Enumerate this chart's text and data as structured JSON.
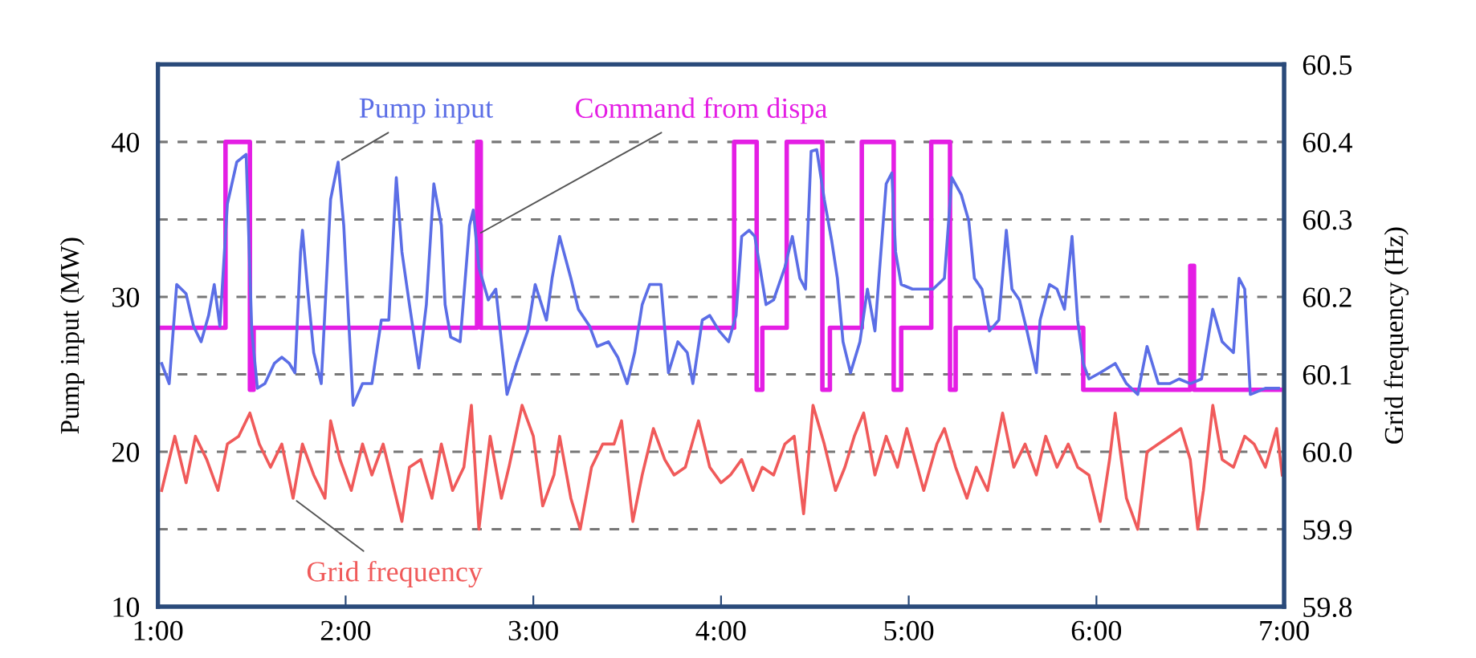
{
  "chart_data": {
    "type": "line",
    "ylabel": "Pump input (MW)",
    "y2label": "Grid frequency (Hz)",
    "xlim": [
      1,
      7
    ],
    "xticks": [
      {
        "value": 1,
        "label": "1:00"
      },
      {
        "value": 2,
        "label": "2:00"
      },
      {
        "value": 3,
        "label": "3:00"
      },
      {
        "value": 4,
        "label": "4:00"
      },
      {
        "value": 5,
        "label": "5:00"
      },
      {
        "value": 6,
        "label": "6:00"
      },
      {
        "value": 7,
        "label": "7:00"
      }
    ],
    "ylim": [
      10,
      45
    ],
    "yticks": [
      10,
      20,
      30,
      40
    ],
    "y2lim": [
      59.8,
      60.5
    ],
    "y2ticks": [
      59.8,
      59.9,
      {
        "value": 60.0,
        "label": "60.0"
      },
      60.1,
      60.2,
      60.3,
      60.4,
      60.5
    ],
    "grid": "y2",
    "line_style": "solid",
    "series": [
      {
        "name": "Pump input",
        "color": "#5b6ee6",
        "x": [
          1.02,
          1.06,
          1.1,
          1.15,
          1.19,
          1.23,
          1.27,
          1.3,
          1.33,
          1.37,
          1.42,
          1.47,
          1.5,
          1.53,
          1.57,
          1.62,
          1.66,
          1.7,
          1.73,
          1.76,
          1.77,
          1.8,
          1.83,
          1.87,
          1.92,
          1.96,
          1.99,
          2.04,
          2.09,
          2.14,
          2.19,
          2.23,
          2.27,
          2.3,
          2.34,
          2.39,
          2.43,
          2.47,
          2.51,
          2.53,
          2.56,
          2.61,
          2.66,
          2.68,
          2.71,
          2.76,
          2.8,
          2.86,
          2.91,
          2.97,
          3.01,
          3.07,
          3.1,
          3.14,
          3.2,
          3.24,
          3.3,
          3.34,
          3.4,
          3.45,
          3.5,
          3.54,
          3.58,
          3.62,
          3.68,
          3.72,
          3.77,
          3.82,
          3.85,
          3.9,
          3.94,
          3.99,
          4.04,
          4.08,
          4.11,
          4.15,
          4.18,
          4.24,
          4.28,
          4.34,
          4.38,
          4.42,
          4.45,
          4.48,
          4.51,
          4.55,
          4.59,
          4.62,
          4.65,
          4.69,
          4.74,
          4.78,
          4.82,
          4.85,
          4.88,
          4.91,
          4.93,
          4.96,
          5.02,
          5.13,
          5.19,
          5.23,
          5.28,
          5.32,
          5.35,
          5.39,
          5.43,
          5.48,
          5.52,
          5.55,
          5.59,
          5.63,
          5.68,
          5.7,
          5.75,
          5.79,
          5.83,
          5.87,
          5.9,
          5.93,
          5.96,
          6.02,
          6.1,
          6.16,
          6.22,
          6.27,
          6.33,
          6.39,
          6.44,
          6.5,
          6.56,
          6.62,
          6.67,
          6.73,
          6.76,
          6.79,
          6.82,
          6.9,
          6.97
        ],
        "values": [
          25.7,
          24.4,
          30.8,
          30.2,
          28.1,
          27.1,
          28.8,
          30.8,
          28.1,
          36.0,
          38.7,
          39.2,
          27.8,
          24.1,
          24.4,
          25.7,
          26.1,
          25.7,
          25.1,
          32.9,
          34.3,
          30.2,
          26.4,
          24.4,
          36.3,
          38.7,
          34.6,
          23.0,
          24.4,
          24.4,
          28.5,
          28.5,
          37.7,
          32.9,
          29.5,
          25.4,
          29.5,
          37.3,
          34.6,
          29.5,
          27.4,
          27.1,
          34.6,
          35.6,
          31.9,
          29.8,
          30.5,
          23.7,
          25.7,
          27.8,
          30.8,
          28.5,
          31.2,
          33.9,
          31.2,
          29.2,
          28.1,
          26.8,
          27.1,
          26.1,
          24.4,
          26.4,
          29.5,
          30.8,
          30.8,
          25.1,
          27.1,
          26.4,
          24.4,
          28.5,
          28.8,
          27.8,
          27.1,
          28.8,
          33.9,
          34.3,
          33.9,
          29.5,
          29.8,
          31.9,
          33.9,
          31.2,
          30.5,
          39.4,
          39.5,
          36.3,
          33.6,
          31.2,
          27.1,
          25.1,
          27.1,
          30.5,
          27.8,
          32.6,
          37.3,
          38.0,
          32.9,
          30.8,
          30.5,
          30.5,
          31.2,
          37.7,
          36.6,
          34.9,
          31.2,
          30.5,
          27.8,
          28.5,
          34.3,
          30.5,
          29.8,
          27.8,
          25.1,
          28.5,
          30.8,
          30.5,
          29.2,
          33.9,
          28.5,
          25.7,
          24.7,
          25.1,
          25.7,
          24.4,
          23.7,
          26.8,
          24.4,
          24.4,
          24.7,
          24.4,
          24.7,
          29.2,
          27.1,
          26.4,
          31.2,
          30.5,
          23.7,
          24.1,
          24.1
        ]
      },
      {
        "name": "Command from dispa",
        "type": "step",
        "color": "#e41ee4",
        "x": [
          1.0,
          1.36,
          1.49,
          1.51,
          2.7,
          2.72,
          4.07,
          4.19,
          4.22,
          4.35,
          4.54,
          4.58,
          4.75,
          4.92,
          4.96,
          5.12,
          5.22,
          5.25,
          5.93,
          6.5,
          6.52,
          7.0
        ],
        "values": [
          28,
          40,
          24,
          28,
          40,
          28,
          40,
          24,
          28,
          40,
          24,
          28,
          40,
          24,
          28,
          40,
          24,
          28,
          24,
          32,
          24,
          24
        ]
      },
      {
        "name": "Grid frequency",
        "axis": "y2",
        "color": "#f05a5a",
        "x": [
          1.02,
          1.09,
          1.15,
          1.2,
          1.26,
          1.32,
          1.37,
          1.43,
          1.49,
          1.54,
          1.6,
          1.66,
          1.72,
          1.77,
          1.83,
          1.89,
          1.92,
          1.97,
          2.03,
          2.09,
          2.14,
          2.2,
          2.26,
          2.3,
          2.34,
          2.4,
          2.46,
          2.51,
          2.57,
          2.63,
          2.67,
          2.71,
          2.77,
          2.83,
          2.87,
          2.94,
          3.0,
          3.05,
          3.11,
          3.14,
          3.2,
          3.25,
          3.31,
          3.37,
          3.43,
          3.47,
          3.53,
          3.58,
          3.64,
          3.7,
          3.75,
          3.81,
          3.88,
          3.94,
          4.0,
          4.05,
          4.11,
          4.17,
          4.22,
          4.28,
          4.34,
          4.39,
          4.44,
          4.49,
          4.55,
          4.61,
          4.66,
          4.71,
          4.76,
          4.82,
          4.88,
          4.94,
          4.99,
          5.08,
          5.15,
          5.19,
          5.25,
          5.31,
          5.36,
          5.42,
          5.5,
          5.56,
          5.62,
          5.68,
          5.73,
          5.79,
          5.85,
          5.9,
          5.96,
          6.02,
          6.07,
          6.1,
          6.16,
          6.22,
          6.27,
          6.33,
          6.39,
          6.45,
          6.5,
          6.54,
          6.57,
          6.62,
          6.67,
          6.73,
          6.79,
          6.84,
          6.9,
          6.96,
          6.99
        ],
        "values": [
          59.95,
          60.02,
          59.96,
          60.02,
          59.99,
          59.95,
          60.01,
          60.02,
          60.05,
          60.01,
          59.98,
          60.01,
          59.94,
          60.01,
          59.97,
          59.94,
          60.04,
          59.99,
          59.95,
          60.01,
          59.97,
          60.01,
          59.95,
          59.91,
          59.98,
          59.99,
          59.94,
          60.01,
          59.95,
          59.98,
          60.06,
          59.9,
          60.02,
          59.94,
          59.98,
          60.06,
          60.02,
          59.93,
          59.97,
          60.02,
          59.94,
          59.9,
          59.98,
          60.01,
          60.01,
          60.04,
          59.91,
          59.97,
          60.03,
          59.99,
          59.97,
          59.98,
          60.04,
          59.98,
          59.96,
          59.97,
          59.99,
          59.95,
          59.98,
          59.97,
          60.01,
          60.02,
          59.92,
          60.06,
          60.01,
          59.95,
          59.98,
          60.02,
          60.05,
          59.97,
          60.02,
          59.98,
          60.03,
          59.95,
          60.01,
          60.03,
          59.98,
          59.94,
          59.98,
          59.95,
          60.05,
          59.98,
          60.01,
          59.97,
          60.02,
          59.98,
          60.01,
          59.98,
          59.97,
          59.91,
          59.99,
          60.05,
          59.94,
          59.9,
          60.0,
          60.01,
          60.02,
          60.03,
          59.99,
          59.9,
          59.95,
          60.06,
          59.99,
          59.98,
          60.02,
          60.01,
          59.98,
          60.03,
          59.97
        ]
      }
    ]
  }
}
